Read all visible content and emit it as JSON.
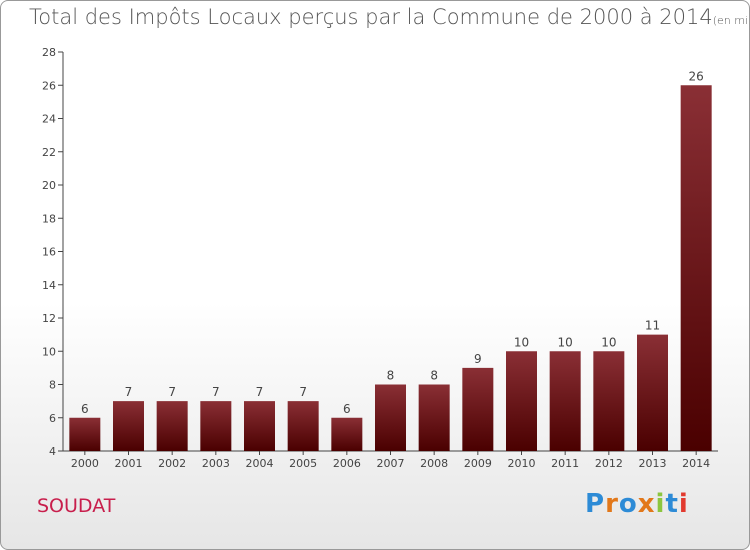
{
  "title": "Total des Impôts Locaux perçus par la Commune de 2000 à 2014",
  "unit": "(en milliers d'€)",
  "commune": "SOUDAT",
  "logo": {
    "text": "Proxiti",
    "colors": [
      "#2d8bd6",
      "#e2781a",
      "#2d8bd6",
      "#e2781a",
      "#8cc63f",
      "#2d8bd6",
      "#e23a2f"
    ]
  },
  "colors": {
    "bar_top": "#8a2f35",
    "bar_bottom": "#4a0000",
    "title": "#555555",
    "commune": "#c81e4c"
  },
  "chart_data": {
    "type": "bar",
    "categories": [
      "2000",
      "2001",
      "2002",
      "2003",
      "2004",
      "2005",
      "2006",
      "2007",
      "2008",
      "2009",
      "2010",
      "2011",
      "2012",
      "2013",
      "2014"
    ],
    "values": [
      6,
      7,
      7,
      7,
      7,
      7,
      6,
      8,
      8,
      9,
      10,
      10,
      10,
      11,
      26
    ],
    "ylim": [
      4,
      28
    ],
    "yticks": [
      4,
      6,
      8,
      10,
      12,
      14,
      16,
      18,
      20,
      22,
      24,
      26,
      28
    ],
    "grid": false,
    "data_labels": true
  }
}
